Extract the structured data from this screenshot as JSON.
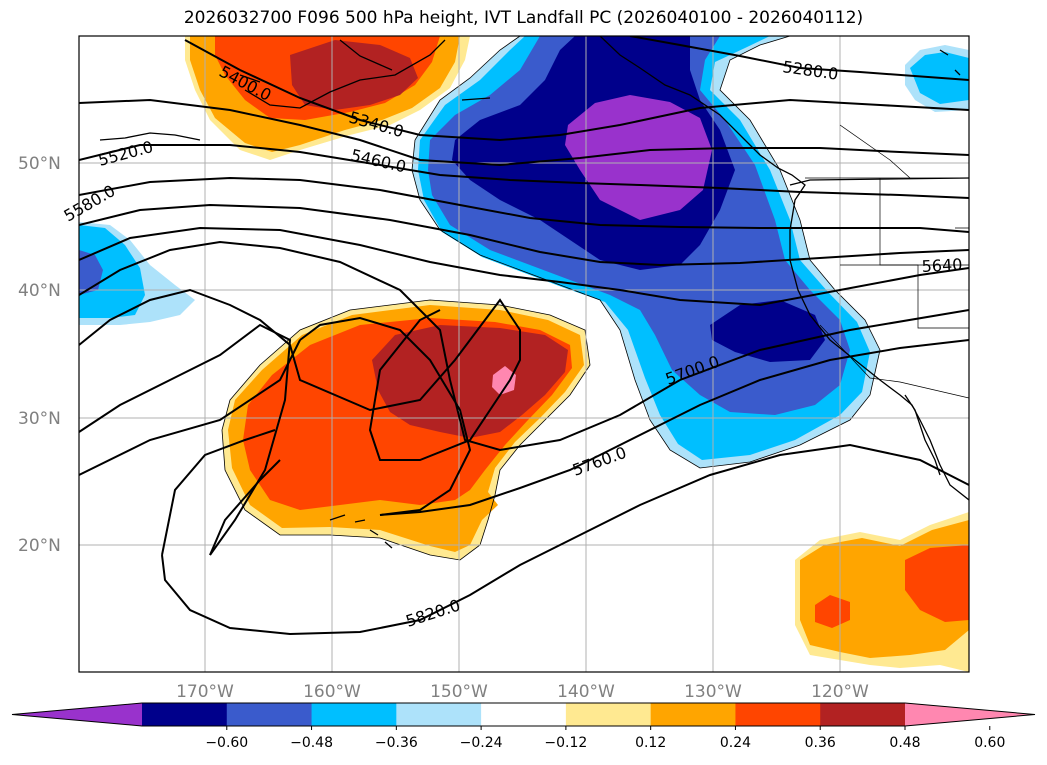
{
  "title": "2026032700 F096 500 hPa height, IVT Landfall PC (2026040100 - 2026040112)",
  "colors": {
    "purple": "#9932cc",
    "navy": "#00008b",
    "royal_blue": "#3a5bcc",
    "deep_sky": "#00bfff",
    "light_blue": "#ade2fa",
    "white": "#ffffff",
    "light_yellow": "#ffe991",
    "orange": "#ffa500",
    "orange_red": "#ff4500",
    "firebrick": "#b22222",
    "pink": "#ff87b0",
    "grid": "#b0b0b0",
    "contour": "#000000"
  },
  "map": {
    "lat_labels": [
      "50°N",
      "40°N",
      "30°N",
      "20°N"
    ],
    "lon_labels": [
      "170°W",
      "160°W",
      "150°W",
      "140°W",
      "130°W",
      "120°W"
    ],
    "contour_labels": [
      "5280.0",
      "5340.0",
      "5400.0",
      "5460.0",
      "5520.0",
      "5580.0",
      "5640",
      "5700.0",
      "5760.0",
      "5820.0"
    ]
  },
  "colorbar": {
    "ticks": [
      "−0.60",
      "−0.48",
      "−0.36",
      "−0.24",
      "−0.12",
      "0.12",
      "0.24",
      "0.36",
      "0.48",
      "0.60"
    ],
    "colors": [
      "#9932cc",
      "#00008b",
      "#3a5bcc",
      "#00bfff",
      "#ade2fa",
      "#ffffff",
      "#ffe991",
      "#ffa500",
      "#ff4500",
      "#b22222",
      "#ff87b0"
    ]
  }
}
